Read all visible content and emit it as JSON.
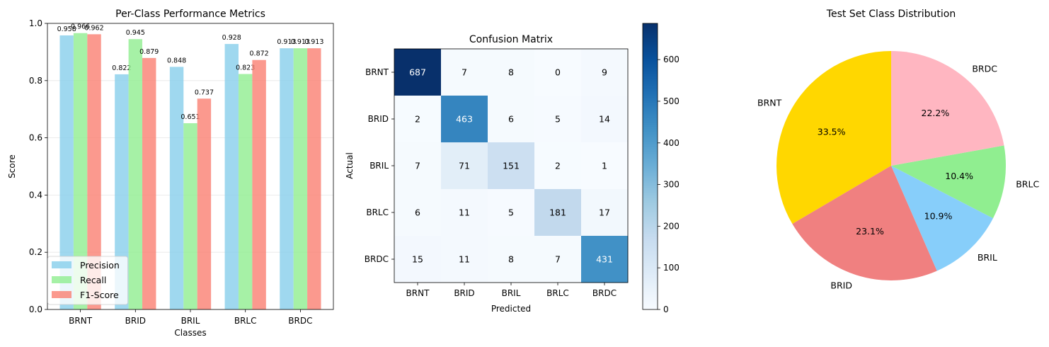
{
  "chart_data": [
    {
      "type": "bar",
      "title": "Per-Class Performance Metrics",
      "xlabel": "Classes",
      "ylabel": "Score",
      "ylim": [
        0,
        1.0
      ],
      "yticks": [
        "0.0",
        "0.2",
        "0.4",
        "0.6",
        "0.8",
        "1.0"
      ],
      "grid": "y",
      "legend_position": "lower-left",
      "categories": [
        "BRNT",
        "BRID",
        "BRIL",
        "BRLC",
        "BRDC"
      ],
      "series": [
        {
          "name": "Precision",
          "color": "#87ceeb",
          "values": [
            0.958,
            0.822,
            0.848,
            0.928,
            0.913
          ],
          "labels": [
            "0.958",
            "0.822",
            "0.848",
            "0.928",
            "0.913"
          ]
        },
        {
          "name": "Recall",
          "color": "#90ee90",
          "values": [
            0.966,
            0.945,
            0.651,
            0.823,
            0.913
          ],
          "labels": [
            "0.966",
            "0.945",
            "0.651",
            "0.823",
            "0.913"
          ]
        },
        {
          "name": "F1-Score",
          "color": "#fa8072",
          "values": [
            0.962,
            0.879,
            0.737,
            0.872,
            0.913
          ],
          "labels": [
            "0.962",
            "0.879",
            "0.737",
            "0.872",
            "0.913"
          ]
        }
      ]
    },
    {
      "type": "heatmap",
      "title": "Confusion Matrix",
      "xlabel": "Predicted",
      "ylabel": "Actual",
      "x_categories": [
        "BRNT",
        "BRID",
        "BRIL",
        "BRLC",
        "BRDC"
      ],
      "y_categories": [
        "BRNT",
        "BRID",
        "BRIL",
        "BRLC",
        "BRDC"
      ],
      "matrix": [
        [
          687,
          7,
          8,
          0,
          9
        ],
        [
          2,
          463,
          6,
          5,
          14
        ],
        [
          7,
          71,
          151,
          2,
          1
        ],
        [
          6,
          11,
          5,
          181,
          17
        ],
        [
          15,
          11,
          8,
          7,
          431
        ]
      ],
      "colormap": "Blues",
      "colorbar_range": [
        0,
        687
      ],
      "colorbar_ticks": [
        0,
        100,
        200,
        300,
        400,
        500,
        600
      ]
    },
    {
      "type": "pie",
      "title": "Test Set Class Distribution",
      "labels": [
        "BRNT",
        "BRID",
        "BRIL",
        "BRLC",
        "BRDC"
      ],
      "values": [
        33.5,
        23.1,
        10.9,
        10.4,
        22.2
      ],
      "pct_labels": [
        "33.5%",
        "23.1%",
        "10.9%",
        "10.4%",
        "22.2%"
      ],
      "colors": [
        "#ffd700",
        "#f08080",
        "#87cefa",
        "#90ee90",
        "#ffb6c1"
      ],
      "start_angle": 90,
      "direction": "counterclockwise"
    }
  ]
}
